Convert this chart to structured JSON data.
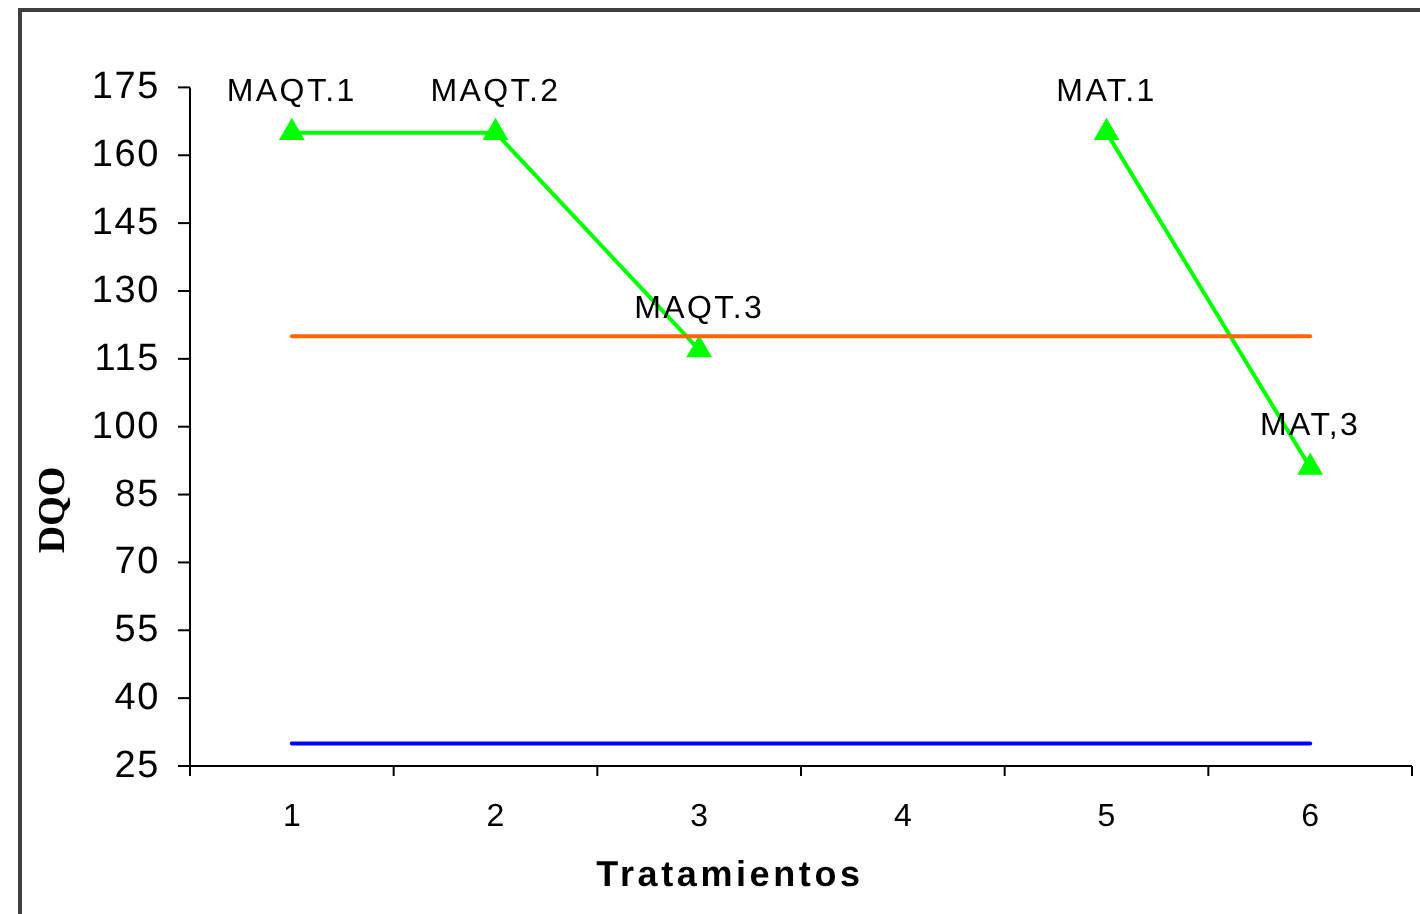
{
  "chart_data": {
    "type": "line",
    "xlabel": "Tratamientos",
    "ylabel": "DQO",
    "categories": [
      "1",
      "2",
      "3",
      "4",
      "5",
      "6"
    ],
    "ylim": [
      25,
      175
    ],
    "yticks": [
      25,
      40,
      55,
      70,
      85,
      100,
      115,
      130,
      145,
      160,
      175
    ],
    "series": [
      {
        "color": "#00ff00",
        "marker": "triangle",
        "values": [
          165,
          165,
          117,
          null,
          165,
          91
        ]
      },
      {
        "color": "#ff6600",
        "marker": "none",
        "values": [
          120,
          120,
          120,
          120,
          120,
          120
        ]
      },
      {
        "color": "#0000ff",
        "marker": "none",
        "values": [
          30,
          30,
          30,
          30,
          30,
          30
        ]
      }
    ],
    "annotations": [
      {
        "text": "MAQT.1",
        "x": "1",
        "y": 165
      },
      {
        "text": "MAQT.2",
        "x": "2",
        "y": 165
      },
      {
        "text": "MAQT.3",
        "x": "3",
        "y": 117
      },
      {
        "text": "MAT.1",
        "x": "5",
        "y": 165
      },
      {
        "text": "MAT,3",
        "x": "6",
        "y": 91
      }
    ]
  }
}
